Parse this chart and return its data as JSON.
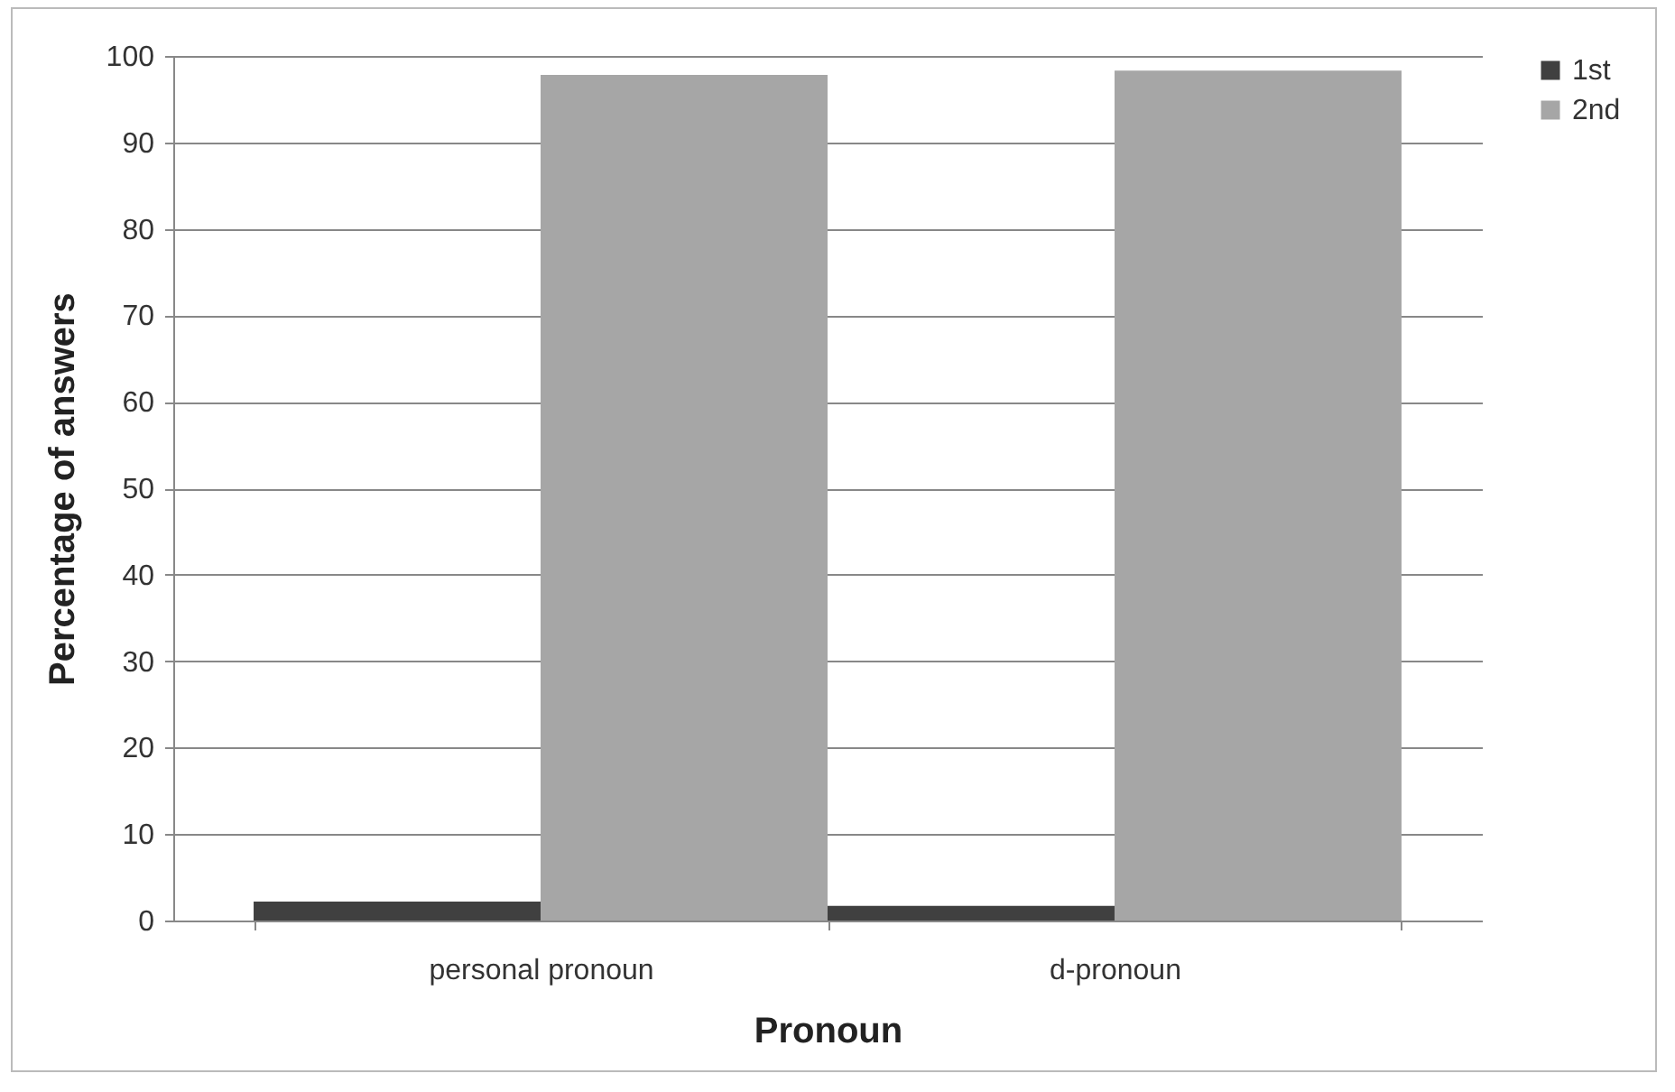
{
  "chart_data": {
    "type": "bar",
    "xlabel": "Pronoun",
    "ylabel": "Percentage of answers",
    "categories": [
      "personal pronoun",
      "d-pronoun"
    ],
    "series": [
      {
        "name": "1st",
        "color": "#404040",
        "values": [
          2.2,
          1.7
        ]
      },
      {
        "name": "2nd",
        "color": "#a6a6a6",
        "values": [
          97.8,
          98.3
        ]
      }
    ],
    "ylim": [
      0,
      100
    ],
    "yticks": [
      0,
      10,
      20,
      30,
      40,
      50,
      60,
      70,
      80,
      90,
      100
    ],
    "grid": "y",
    "legend": "right"
  }
}
